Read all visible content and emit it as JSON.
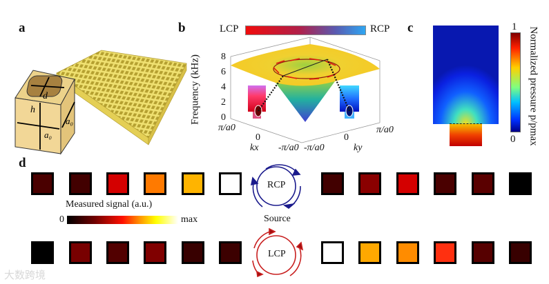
{
  "panels": {
    "a": {
      "label": "a",
      "dims": {
        "d": "d",
        "h": "h",
        "a0_1": "a0",
        "a0_2": "a0"
      }
    },
    "b": {
      "label": "b",
      "colorbar": {
        "left": "LCP",
        "right": "RCP",
        "left_color": "#ee1111",
        "right_color": "#2fa0f0"
      },
      "zlabel": "Frequency (kHz)",
      "zticks": [
        "8",
        "6",
        "4",
        "2",
        "0"
      ],
      "kx_ticks": [
        "π/a0",
        "0",
        "-π/a0"
      ],
      "ky_ticks": [
        "-π/a0",
        "0",
        "π/a0"
      ],
      "kx_label": "kx",
      "ky_label": "ky"
    },
    "c": {
      "label": "c",
      "colorbar_max": "1",
      "colorbar_min": "0",
      "colorbar_title": "Normalized pressure  p/pmax"
    },
    "d": {
      "label": "d",
      "colorbar_title": "Measured signal (a.u.)",
      "colorbar_min": "0",
      "colorbar_max": "max",
      "source_label": "Source",
      "rcp_label": "RCP",
      "lcp_label": "LCP",
      "rcp_color": "#1a1a8c",
      "lcp_color": "#c81e1e",
      "top_row_left": [
        "#4a0000",
        "#420000",
        "#d40000",
        "#ff7a00",
        "#ffb400",
        "#ffffff"
      ],
      "top_row_right": [
        "#420000",
        "#8a0000",
        "#d40000",
        "#4a0000",
        "#5a0000",
        "#000000"
      ],
      "bottom_row_left": [
        "#000000",
        "#780000",
        "#520000",
        "#800000",
        "#380000",
        "#3c0000"
      ],
      "bottom_row_right": [
        "#ffffff",
        "#ffa800",
        "#ff8c00",
        "#ff3010",
        "#560000",
        "#380000"
      ]
    }
  },
  "watermark": "大数跨境"
}
